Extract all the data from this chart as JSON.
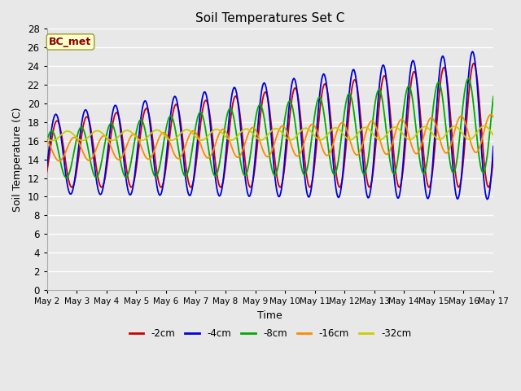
{
  "title": "Soil Temperatures Set C",
  "xlabel": "Time",
  "ylabel": "Soil Temperature (C)",
  "ylim": [
    0,
    28
  ],
  "yticks": [
    0,
    2,
    4,
    6,
    8,
    10,
    12,
    14,
    16,
    18,
    20,
    22,
    24,
    26,
    28
  ],
  "xtick_labels": [
    "May 2",
    "May 3",
    "May 4",
    "May 5",
    "May 6",
    "May 7",
    "May 8",
    "May 9",
    "May 10",
    "May 11",
    "May 12",
    "May 13",
    "May 14",
    "May 15",
    "May 16",
    "May 17"
  ],
  "series_colors": [
    "#cc0000",
    "#0000dd",
    "#00aa00",
    "#ff8800",
    "#cccc00"
  ],
  "series_labels": [
    "-2cm",
    "-4cm",
    "-8cm",
    "-16cm",
    "-32cm"
  ],
  "annotation_text": "BC_met",
  "annotation_color": "#880000",
  "bg_color": "#e8e8e8",
  "grid_color": "#ffffff",
  "n_points": 500
}
